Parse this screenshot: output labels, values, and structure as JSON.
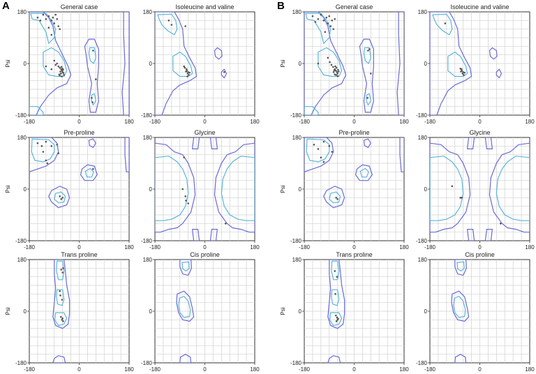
{
  "chart_data": {
    "type": "scatter",
    "panels": [
      {
        "label": "A",
        "plots": [
          {
            "title": "General case",
            "ylabel": "Psi",
            "xlim": [
              -180,
              180
            ],
            "ylim": [
              -180,
              180
            ],
            "xticks": [
              "-180",
              "0",
              "180"
            ],
            "yticks": [
              "180",
              "0",
              "-180"
            ],
            "points": [
              [
                -150,
                160
              ],
              [
                -140,
                150
              ],
              [
                -130,
                170
              ],
              [
                -120,
                155
              ],
              [
                -110,
                165
              ],
              [
                -100,
                150
              ],
              [
                -95,
                160
              ],
              [
                -90,
                140
              ],
              [
                -85,
                170
              ],
              [
                -80,
                155
              ],
              [
                -75,
                130
              ],
              [
                -70,
                120
              ],
              [
                -110,
                125
              ],
              [
                -100,
                100
              ],
              [
                -90,
                10
              ],
              [
                -85,
                -5
              ],
              [
                -80,
                0
              ],
              [
                -75,
                -10
              ],
              [
                -70,
                -15
              ],
              [
                -65,
                -20
              ],
              [
                -62,
                -25
              ],
              [
                -60,
                -30
              ],
              [
                -58,
                -22
              ],
              [
                -66,
                -35
              ],
              [
                -55,
                -40
              ],
              [
                -63,
                -45
              ],
              [
                -68,
                -28
              ],
              [
                -72,
                -38
              ],
              [
                -60,
                -18
              ],
              [
                -57,
                -33
              ],
              [
                -64,
                -12
              ],
              [
                -70,
                -42
              ],
              [
                -120,
                -10
              ],
              [
                -100,
                -20
              ],
              [
                60,
                -55
              ],
              [
                50,
                45
              ],
              [
                45,
                -120
              ],
              [
                48,
                -135
              ]
            ]
          },
          {
            "title": "Isoleucine and valine",
            "ylabel": "",
            "xlim": [
              -180,
              180
            ],
            "ylim": [
              -180,
              180
            ],
            "xticks": [
              "-180",
              "0",
              "180"
            ],
            "yticks": [
              "180",
              "0",
              "-180"
            ],
            "points": [
              [
                -130,
                150
              ],
              [
                -120,
                135
              ],
              [
                -70,
                130
              ],
              [
                -65,
                -25
              ],
              [
                -62,
                -35
              ],
              [
                -60,
                -30
              ],
              [
                -58,
                -40
              ],
              [
                -66,
                -20
              ],
              [
                -55,
                -32
              ],
              [
                -63,
                -45
              ],
              [
                -68,
                -28
              ],
              [
                -72,
                -15
              ],
              [
                -75,
                -10
              ],
              [
                70,
                -30
              ]
            ]
          },
          {
            "title": "Pre-proline",
            "ylabel": "Psi",
            "xlim": [
              -180,
              180
            ],
            "ylim": [
              -180,
              180
            ],
            "xticks": [
              "-180",
              "0",
              "180"
            ],
            "yticks": [
              "180",
              "0",
              "-180"
            ],
            "points": [
              [
                -150,
                160
              ],
              [
                -135,
                150
              ],
              [
                -120,
                165
              ],
              [
                -100,
                150
              ],
              [
                -80,
                155
              ],
              [
                -75,
                125
              ],
              [
                -130,
                130
              ],
              [
                -120,
                100
              ],
              [
                -115,
                90
              ],
              [
                -70,
                -25
              ],
              [
                -65,
                -35
              ],
              [
                -60,
                -30
              ],
              [
                50,
                70
              ]
            ]
          },
          {
            "title": "Glycine",
            "ylabel": "",
            "xlim": [
              -180,
              180
            ],
            "ylim": [
              -180,
              180
            ],
            "xticks": [
              "-180",
              "0",
              "180"
            ],
            "yticks": [
              "180",
              "0",
              "-180"
            ],
            "points": [
              [
                -75,
                110
              ],
              [
                -80,
                0
              ],
              [
                -70,
                -25
              ],
              [
                -68,
                -40
              ],
              [
                -60,
                -50
              ],
              [
                75,
                -120
              ]
            ]
          },
          {
            "title": "Trans proline",
            "ylabel": "Psi",
            "xlim": [
              -180,
              180
            ],
            "ylim": [
              -180,
              180
            ],
            "xticks": [
              "-180",
              "0",
              "180"
            ],
            "yticks": [
              "180",
              "0",
              "-180"
            ],
            "points": [
              [
                -65,
                145
              ],
              [
                -60,
                135
              ],
              [
                -58,
                150
              ],
              [
                -70,
                70
              ],
              [
                -68,
                55
              ],
              [
                -62,
                40
              ],
              [
                -66,
                -20
              ],
              [
                -62,
                -30
              ],
              [
                -60,
                -25
              ],
              [
                -58,
                -35
              ]
            ]
          },
          {
            "title": "Cis proline",
            "ylabel": "",
            "xlim": [
              -180,
              180
            ],
            "ylim": [
              -180,
              180
            ],
            "xticks": [
              "-180",
              "0",
              "180"
            ],
            "yticks": [
              "180",
              "0",
              "-180"
            ],
            "points": []
          }
        ]
      },
      {
        "label": "B",
        "plots": [
          {
            "title": "General case",
            "ylabel": "Psi",
            "xlim": [
              -180,
              180
            ],
            "ylim": [
              -180,
              180
            ],
            "xticks": [
              "-180",
              "0",
              "180"
            ],
            "yticks": [
              "180",
              "0",
              "-180"
            ],
            "points": [
              [
                -150,
                165
              ],
              [
                -140,
                145
              ],
              [
                -130,
                155
              ],
              [
                -120,
                170
              ],
              [
                -110,
                150
              ],
              [
                -100,
                160
              ],
              [
                -95,
                140
              ],
              [
                -90,
                165
              ],
              [
                -85,
                130
              ],
              [
                -80,
                150
              ],
              [
                -75,
                120
              ],
              [
                -70,
                155
              ],
              [
                -105,
                110
              ],
              [
                -95,
                20
              ],
              [
                -88,
                5
              ],
              [
                -82,
                -5
              ],
              [
                -76,
                -12
              ],
              [
                -70,
                -20
              ],
              [
                -66,
                -25
              ],
              [
                -62,
                -30
              ],
              [
                -60,
                -35
              ],
              [
                -58,
                -22
              ],
              [
                -65,
                -40
              ],
              [
                -56,
                -28
              ],
              [
                -64,
                -15
              ],
              [
                -70,
                -38
              ],
              [
                -74,
                -30
              ],
              [
                -59,
                -44
              ],
              [
                -68,
                -10
              ],
              [
                -72,
                -24
              ],
              [
                -130,
                0
              ],
              [
                50,
                45
              ],
              [
                60,
                -35
              ],
              [
                55,
                50
              ],
              [
                48,
                -120
              ]
            ]
          },
          {
            "title": "Isoleucine and valine",
            "ylabel": "",
            "xlim": [
              -180,
              180
            ],
            "ylim": [
              -180,
              180
            ],
            "xticks": [
              "-180",
              "0",
              "180"
            ],
            "yticks": [
              "180",
              "0",
              "-180"
            ],
            "points": [
              [
                -125,
                140
              ],
              [
                -65,
                -25
              ],
              [
                -62,
                -35
              ],
              [
                -60,
                -30
              ],
              [
                -58,
                -40
              ],
              [
                -66,
                -20
              ],
              [
                -55,
                -32
              ],
              [
                -68,
                -28
              ],
              [
                -70,
                -18
              ]
            ]
          },
          {
            "title": "Pre-proline",
            "ylabel": "Psi",
            "xlim": [
              -180,
              180
            ],
            "ylim": [
              -180,
              180
            ],
            "xticks": [
              "-180",
              "0",
              "180"
            ],
            "yticks": [
              "180",
              "0",
              "-180"
            ],
            "points": [
              [
                -145,
                155
              ],
              [
                -130,
                140
              ],
              [
                -110,
                165
              ],
              [
                -90,
                150
              ],
              [
                -80,
                130
              ],
              [
                -120,
                110
              ],
              [
                -110,
                95
              ],
              [
                -65,
                -30
              ],
              [
                -60,
                -35
              ]
            ]
          },
          {
            "title": "Glycine",
            "ylabel": "",
            "xlim": [
              -180,
              180
            ],
            "ylim": [
              -180,
              180
            ],
            "xticks": [
              "-180",
              "0",
              "180"
            ],
            "yticks": [
              "180",
              "0",
              "-180"
            ],
            "points": [
              [
                -100,
                10
              ],
              [
                -70,
                -30
              ],
              [
                -65,
                -30
              ],
              [
                75,
                -120
              ]
            ]
          },
          {
            "title": "Trans proline",
            "ylabel": "Psi",
            "xlim": [
              -180,
              180
            ],
            "ylim": [
              -180,
              180
            ],
            "xticks": [
              "-180",
              "0",
              "180"
            ],
            "yticks": [
              "180",
              "0",
              "-180"
            ],
            "points": [
              [
                -70,
                140
              ],
              [
                -62,
                120
              ],
              [
                -68,
                60
              ],
              [
                -66,
                -15
              ],
              [
                -62,
                -22
              ],
              [
                -60,
                -30
              ],
              [
                -58,
                -26
              ],
              [
                -64,
                -35
              ]
            ]
          },
          {
            "title": "Cis proline",
            "ylabel": "",
            "xlim": [
              -180,
              180
            ],
            "ylim": [
              -180,
              180
            ],
            "xticks": [
              "-180",
              "0",
              "180"
            ],
            "yticks": [
              "180",
              "0",
              "-180"
            ],
            "points": []
          }
        ]
      }
    ],
    "contour_colors": {
      "outer": "#6a6ad6",
      "inner": "#5ab6d9"
    },
    "point_color": "#555555",
    "grid": true,
    "grid_step": 30
  }
}
